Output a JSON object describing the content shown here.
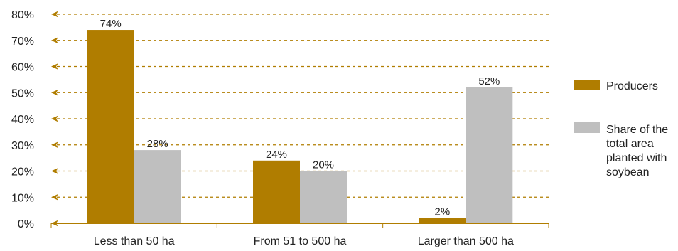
{
  "chart_data": {
    "type": "bar",
    "categories": [
      "Less than 50 ha",
      "From 51 to 500 ha",
      "Larger than 500 ha"
    ],
    "series": [
      {
        "name": "Producers",
        "values": [
          74,
          24,
          2
        ],
        "labels": [
          "74%",
          "24%",
          "2%"
        ],
        "color": "#b07d00"
      },
      {
        "name_lines": [
          "Share of the",
          "total area",
          "planted with",
          "soybean"
        ],
        "values": [
          28,
          20,
          52
        ],
        "labels": [
          "28%",
          "20%",
          "52%"
        ],
        "color": "#bfbfbf"
      }
    ],
    "y_ticks": [
      {
        "value": 0,
        "label": "0%"
      },
      {
        "value": 10,
        "label": "10%"
      },
      {
        "value": 20,
        "label": "20%"
      },
      {
        "value": 30,
        "label": "30%"
      },
      {
        "value": 40,
        "label": "40%"
      },
      {
        "value": 50,
        "label": "50%"
      },
      {
        "value": 60,
        "label": "60%"
      },
      {
        "value": 70,
        "label": "70%"
      },
      {
        "value": 80,
        "label": "80%"
      }
    ],
    "ylim": [
      0,
      80
    ],
    "grid": true,
    "grid_color": "#b07d00",
    "legend_position": "right"
  }
}
